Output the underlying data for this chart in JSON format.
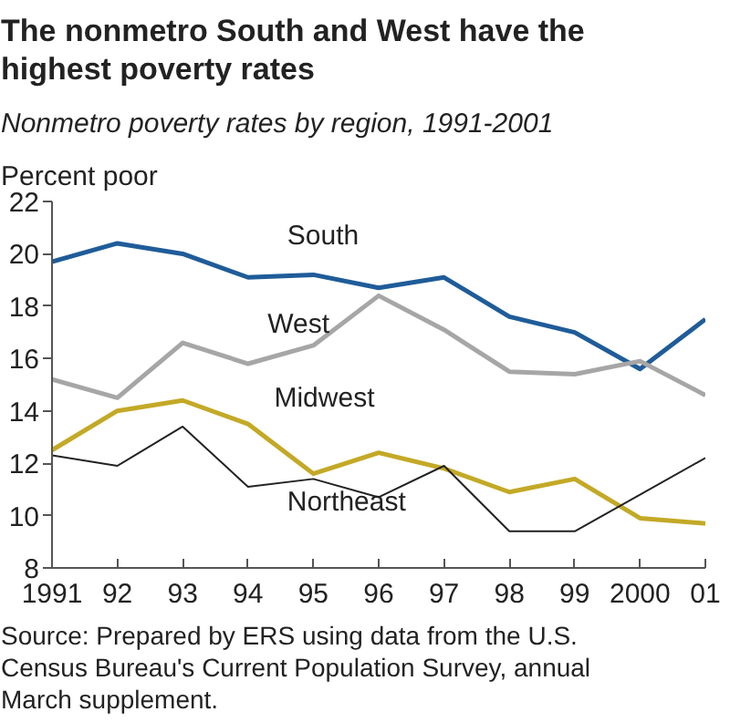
{
  "chart_data": {
    "type": "line",
    "title": "The nonmetro South and West have the highest poverty rates",
    "subtitle": "Nonmetro poverty rates by region, 1991-2001",
    "ylabel": "Percent poor",
    "x": [
      1991,
      1992,
      1993,
      1994,
      1995,
      1996,
      1997,
      1998,
      1999,
      2000,
      2001
    ],
    "series": [
      {
        "name": "South",
        "color": "#1f5c99",
        "values": [
          19.7,
          20.4,
          20.0,
          19.1,
          19.2,
          18.7,
          19.1,
          17.6,
          17.0,
          15.6,
          17.5
        ]
      },
      {
        "name": "West",
        "color": "#a6a6a6",
        "values": [
          15.2,
          14.5,
          16.6,
          15.8,
          16.5,
          18.4,
          17.1,
          15.5,
          15.4,
          15.9,
          14.6
        ]
      },
      {
        "name": "Midwest",
        "color": "#c3a926",
        "values": [
          12.5,
          14.0,
          14.4,
          13.5,
          11.6,
          12.4,
          11.8,
          10.9,
          11.4,
          9.9,
          9.7
        ]
      },
      {
        "name": "Northeast",
        "color": "#222222",
        "values": [
          12.3,
          11.9,
          13.4,
          11.1,
          11.4,
          10.7,
          11.9,
          9.4,
          9.4,
          10.8,
          12.2
        ]
      }
    ],
    "annotations": [
      "Source: Prepared by ERS using data from the U.S. Census Bureau's Current Population Survey, annual March supplement."
    ],
    "xlim": [
      1991,
      2001
    ],
    "xticks": [
      {
        "value": 1991,
        "label": "1991"
      },
      {
        "value": 1992,
        "label": "92"
      },
      {
        "value": 1993,
        "label": "93"
      },
      {
        "value": 1994,
        "label": "94"
      },
      {
        "value": 1995,
        "label": "95"
      },
      {
        "value": 1996,
        "label": "96"
      },
      {
        "value": 1997,
        "label": "97"
      },
      {
        "value": 1998,
        "label": "98"
      },
      {
        "value": 1999,
        "label": "99"
      },
      {
        "value": 2000,
        "label": "2000"
      },
      {
        "value": 2001,
        "label": "01"
      }
    ],
    "ylim": [
      8,
      22
    ],
    "yticks": [
      8,
      10,
      12,
      14,
      16,
      18,
      20,
      22
    ],
    "grid": false,
    "legend": false,
    "marker": "none",
    "line_style": "solid"
  }
}
